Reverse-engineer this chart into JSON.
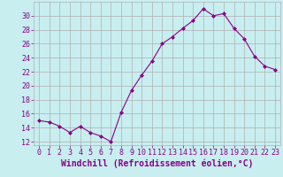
{
  "x": [
    0,
    1,
    2,
    3,
    4,
    5,
    6,
    7,
    8,
    9,
    10,
    11,
    12,
    13,
    14,
    15,
    16,
    17,
    18,
    19,
    20,
    21,
    22,
    23
  ],
  "y": [
    15.0,
    14.8,
    14.2,
    13.3,
    14.2,
    13.3,
    12.8,
    12.0,
    16.2,
    19.3,
    21.5,
    23.5,
    26.0,
    27.0,
    28.2,
    29.3,
    31.0,
    30.0,
    30.3,
    28.2,
    26.7,
    24.2,
    22.8,
    22.3
  ],
  "line_color": "#880088",
  "marker": "D",
  "marker_size": 2.0,
  "bg_color": "#c8eef0",
  "grid_color": "#b0b0b0",
  "xlabel": "Windchill (Refroidissement éolien,°C)",
  "xlabel_fontsize": 7,
  "ylim": [
    11.5,
    32
  ],
  "xlim": [
    -0.5,
    23.5
  ],
  "yticks": [
    12,
    14,
    16,
    18,
    20,
    22,
    24,
    26,
    28,
    30
  ],
  "xticks": [
    0,
    1,
    2,
    3,
    4,
    5,
    6,
    7,
    8,
    9,
    10,
    11,
    12,
    13,
    14,
    15,
    16,
    17,
    18,
    19,
    20,
    21,
    22,
    23
  ],
  "tick_fontsize": 6,
  "label_color": "#880088"
}
